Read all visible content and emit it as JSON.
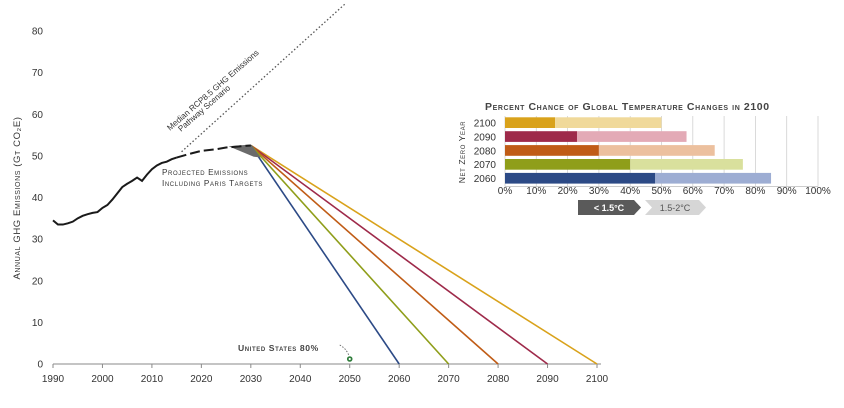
{
  "chart_data": [
    {
      "type": "line",
      "ylabel": "Annual GHG Emissions (Gt CO₂E)",
      "xlim": [
        1990,
        2100
      ],
      "ylim": [
        0,
        80
      ],
      "x_ticks": [
        "1990",
        "2000",
        "2010",
        "2020",
        "2030",
        "2040",
        "2050",
        "2060",
        "2070",
        "2080",
        "2090",
        "2100"
      ],
      "y_ticks": [
        "0",
        "10",
        "20",
        "30",
        "40",
        "50",
        "60",
        "70",
        "80"
      ],
      "historical": {
        "x": [
          1990,
          1991,
          1992,
          1993,
          1994,
          1995,
          1996,
          1997,
          1998,
          1999,
          2000,
          2001,
          2002,
          2003,
          2004,
          2005,
          2006,
          2007,
          2008,
          2009,
          2010,
          2011,
          2012,
          2013,
          2014,
          2015
        ],
        "y": [
          34.5,
          33.5,
          33.5,
          33.8,
          34.2,
          35.0,
          35.6,
          36.0,
          36.3,
          36.5,
          37.5,
          38.2,
          39.5,
          41.0,
          42.5,
          43.3,
          44.0,
          44.8,
          44.0,
          45.5,
          46.8,
          47.7,
          48.3,
          48.6,
          49.2,
          49.6
        ]
      },
      "projected": {
        "x": [
          2015,
          2018,
          2020,
          2023,
          2025,
          2028,
          2030
        ],
        "y": [
          49.6,
          50.6,
          51.2,
          51.6,
          52.0,
          52.3,
          52.5
        ]
      },
      "rcp85": {
        "x": [
          2016,
          2049
        ],
        "y": [
          51,
          85
        ]
      },
      "pathways": [
        {
          "net_zero_year": 2060,
          "color": "#2c4a86",
          "values": [
            [
              2030,
              52.5
            ],
            [
              2060,
              0
            ]
          ]
        },
        {
          "net_zero_year": 2070,
          "color": "#8f9e1a",
          "values": [
            [
              2030,
              52.5
            ],
            [
              2070,
              0
            ]
          ]
        },
        {
          "net_zero_year": 2080,
          "color": "#c05c16",
          "values": [
            [
              2030,
              52.5
            ],
            [
              2080,
              0
            ]
          ]
        },
        {
          "net_zero_year": 2090,
          "color": "#9e2a4a",
          "values": [
            [
              2030,
              52.5
            ],
            [
              2090,
              0
            ]
          ]
        },
        {
          "net_zero_year": 2100,
          "color": "#d9a21b",
          "values": [
            [
              2030,
              52.5
            ],
            [
              2100,
              0
            ]
          ]
        }
      ],
      "annotations": {
        "rcp": [
          "Median RCP8.5 GHG Emissions",
          "Pathway Scenario"
        ],
        "projected": [
          "Projected Emissions",
          "Including Paris Targets"
        ],
        "us": "United States 80%",
        "us_point": [
          2050,
          1.2
        ]
      }
    },
    {
      "type": "bar",
      "title": "Percent Chance of Global Temperature Changes in 2100",
      "ylabel": "Net Zero Year",
      "xlim": [
        0,
        100
      ],
      "x_ticks": [
        "0%",
        "10%",
        "20%",
        "30%",
        "40%",
        "50%",
        "60%",
        "70%",
        "80%",
        "90%",
        "100%"
      ],
      "categories": [
        "2100",
        "2090",
        "2080",
        "2070",
        "2060"
      ],
      "series": [
        {
          "name": "< 1.5°C",
          "values": [
            16,
            23,
            30,
            40,
            48
          ]
        },
        {
          "name": "1.5-2°C",
          "values": [
            34,
            35,
            37,
            36,
            37
          ]
        }
      ],
      "colors_dark": [
        "#d9a21b",
        "#9e2a4a",
        "#c05c16",
        "#8f9e1a",
        "#2c4a86"
      ],
      "colors_light": [
        "#f0d99a",
        "#e3aab6",
        "#ecc09e",
        "#d9e09d",
        "#9dadd3"
      ],
      "legend_colors": [
        "#5a5a5a",
        "#d6d6d6"
      ],
      "legend_placement": "bottom"
    }
  ]
}
